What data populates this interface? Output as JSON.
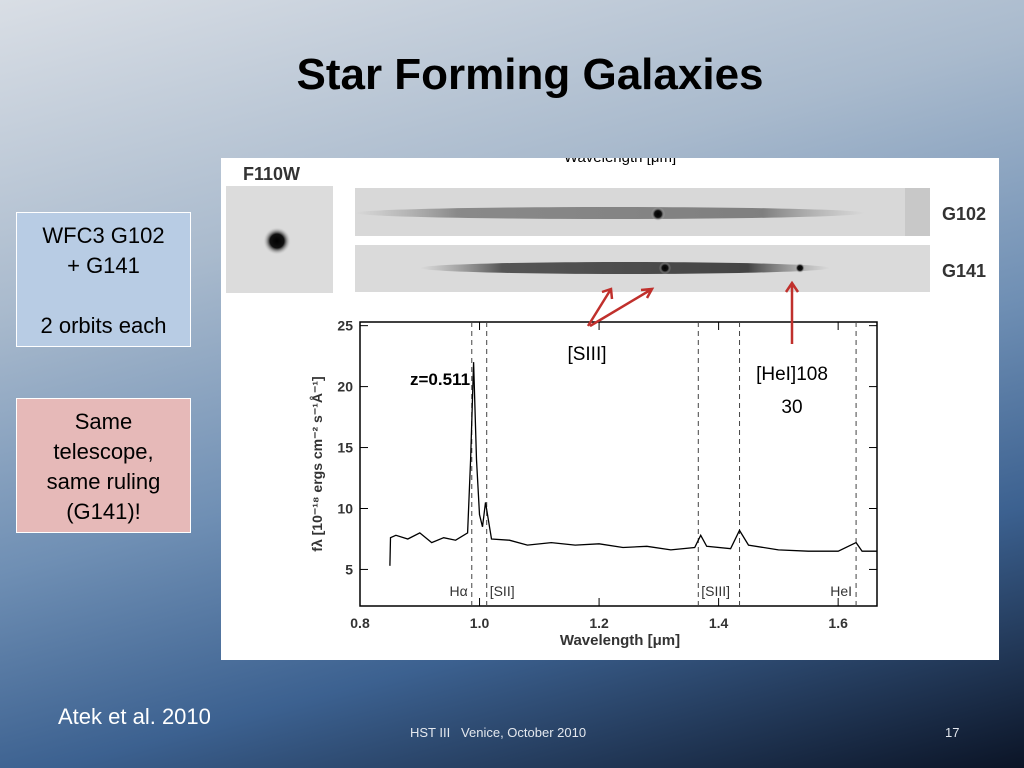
{
  "title": "Star Forming Galaxies",
  "boxes": [
    {
      "lines": [
        "WFC3 G102",
        "+ G141",
        "",
        "2 orbits each"
      ]
    },
    {
      "lines": [
        "Same",
        "telescope,",
        "same ruling",
        "(G141)!"
      ]
    }
  ],
  "figure": {
    "top_label": "Wavelength [μm]",
    "image_label": "F110W",
    "strip_labels": [
      "G102",
      "G141"
    ]
  },
  "chart_data": {
    "type": "line",
    "ylabel": "fλ [10⁻¹⁸ ergs cm⁻² s⁻¹Å⁻¹]",
    "xlabel": "Wavelength [μm]",
    "annotation": "z=0.511",
    "xlim": [
      0.8,
      1.665
    ],
    "ylim": [
      2,
      25.3
    ],
    "xticks": [
      0.8,
      {
        "value": 1,
        "label": "1.0"
      },
      1.2,
      1.4,
      1.6
    ],
    "yticks": [
      5,
      10,
      15,
      20,
      25
    ],
    "line_markers": [
      {
        "x": 0.987,
        "label": "Hα"
      },
      {
        "x": 1.012,
        "label": "[SII]"
      },
      {
        "x": 1.366,
        "label": "[SIII]"
      },
      {
        "x": 1.435
      },
      {
        "x": 1.63,
        "label": "HeI"
      }
    ],
    "series": [
      {
        "color": "#000000",
        "x": [
          0.85,
          0.851,
          0.86,
          0.88,
          0.9,
          0.92,
          0.94,
          0.96,
          0.98,
          0.985,
          0.99,
          0.995,
          1.0,
          1.005,
          1.01,
          1.015,
          1.02,
          1.05,
          1.08,
          1.12,
          1.16,
          1.2,
          1.24,
          1.28,
          1.32,
          1.36,
          1.37,
          1.38,
          1.42,
          1.435,
          1.45,
          1.5,
          1.55,
          1.6,
          1.63,
          1.64,
          1.665
        ],
        "values": [
          5.3,
          7.6,
          7.8,
          7.5,
          8.0,
          7.2,
          7.6,
          7.4,
          8.0,
          14,
          22,
          14,
          9.5,
          8.5,
          10.5,
          9.0,
          7.5,
          7.4,
          7.0,
          7.2,
          7.0,
          7.1,
          6.8,
          6.9,
          6.6,
          6.8,
          7.8,
          6.9,
          6.7,
          8.2,
          7.0,
          6.6,
          6.5,
          6.5,
          7.2,
          6.5,
          6.5
        ]
      }
    ],
    "callouts": [
      {
        "lines": [
          "[SIII]"
        ]
      },
      {
        "lines": [
          "[HeI]108",
          "30"
        ]
      }
    ]
  },
  "footer": {
    "credit": "Atek et al. 2010",
    "event": "HST III   Venice, October 2010",
    "page": "17"
  }
}
